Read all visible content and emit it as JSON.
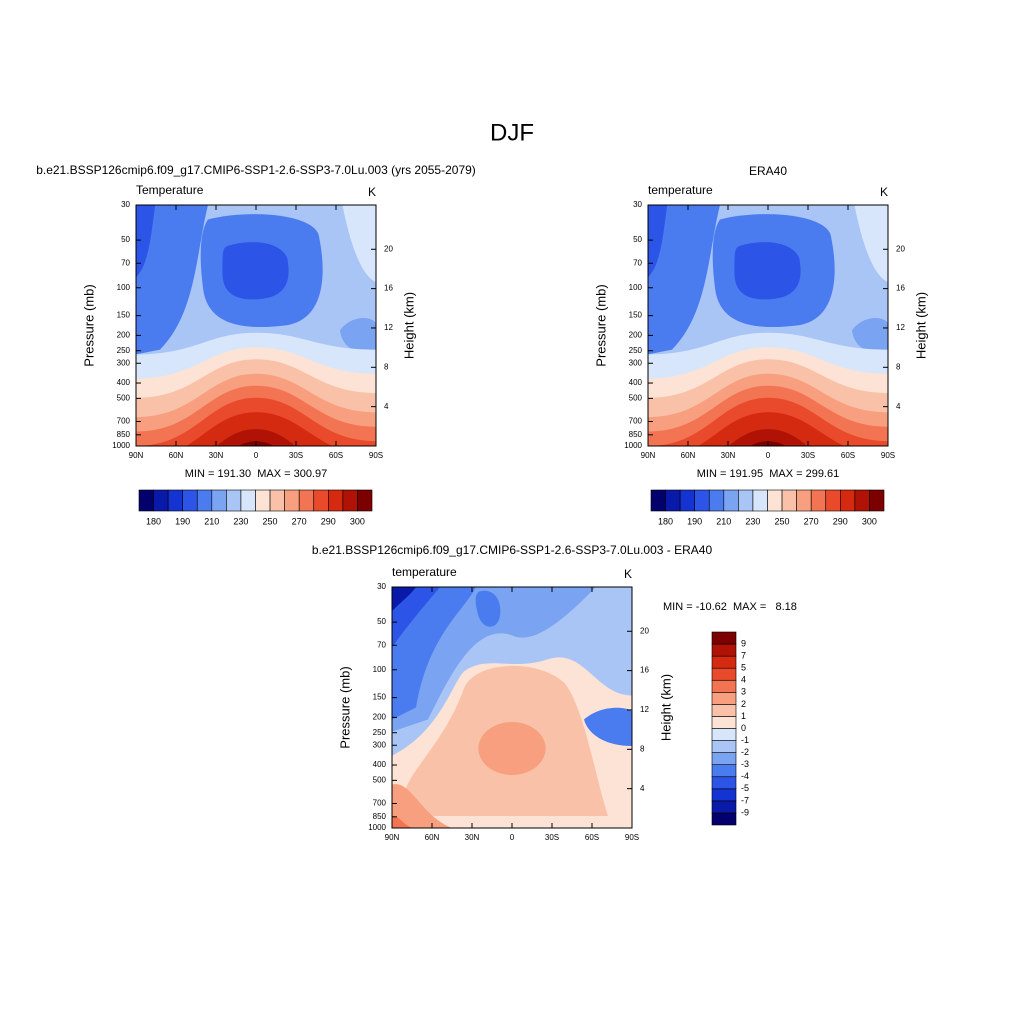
{
  "title": "DJF",
  "chart_data": [
    {
      "type": "contour",
      "title": "b.e21.BSSP126cmip6.f09_g17.CMIP6-SSP1-2.6-SSP3-7.0Lu.003 (yrs 2055-2079)",
      "left_title": "Temperature",
      "right_title": "K",
      "y_label": "Pressure (mb)",
      "y2_label": "Height (km)",
      "stats": "MIN = 191.30  MAX = 300.97",
      "xlim": [
        90,
        -90
      ],
      "xticks": [
        {
          "value": 90,
          "label": "90N"
        },
        {
          "value": 60,
          "label": "60N"
        },
        {
          "value": 30,
          "label": "30N"
        },
        0,
        {
          "value": -30,
          "label": "30S"
        },
        {
          "value": -60,
          "label": "60S"
        },
        {
          "value": -90,
          "label": "90S"
        }
      ],
      "ylim": [
        1000,
        30
      ],
      "ylog": true,
      "yticks": [
        30,
        50,
        70,
        100,
        150,
        200,
        250,
        300,
        400,
        500,
        700,
        850,
        1000
      ],
      "y2lim": [
        0,
        24.5
      ],
      "y2ticks": [
        4,
        8,
        12,
        16,
        20
      ],
      "colorbar": {
        "orientation": "horizontal",
        "colors": [
          "#03006d",
          "#0a1aa8",
          "#1533d1",
          "#2c55e8",
          "#4a7cf0",
          "#7aa3f2",
          "#a9c5f5",
          "#d7e6fb",
          "#fde3d5",
          "#f9c2a8",
          "#f79f7e",
          "#f27453",
          "#e84a2b",
          "#d42a10",
          "#b01305",
          "#7d0000"
        ],
        "ticks": [
          180,
          190,
          210,
          230,
          250,
          270,
          290,
          300
        ]
      }
    },
    {
      "type": "contour",
      "title": "ERA40",
      "left_title": "temperature",
      "right_title": "K",
      "y_label": "Pressure (mb)",
      "y2_label": "Height (km)",
      "stats": "MIN = 191.95  MAX = 299.61",
      "xlim": [
        90,
        -90
      ],
      "xticks": [
        {
          "value": 90,
          "label": "90N"
        },
        {
          "value": 60,
          "label": "60N"
        },
        {
          "value": 30,
          "label": "30N"
        },
        0,
        {
          "value": -30,
          "label": "30S"
        },
        {
          "value": -60,
          "label": "60S"
        },
        {
          "value": -90,
          "label": "90S"
        }
      ],
      "ylim": [
        1000,
        30
      ],
      "ylog": true,
      "yticks": [
        30,
        50,
        70,
        100,
        150,
        200,
        250,
        300,
        400,
        500,
        700,
        850,
        1000
      ],
      "y2lim": [
        0,
        24.5
      ],
      "y2ticks": [
        4,
        8,
        12,
        16,
        20
      ],
      "colorbar": {
        "orientation": "horizontal",
        "colors": [
          "#03006d",
          "#0a1aa8",
          "#1533d1",
          "#2c55e8",
          "#4a7cf0",
          "#7aa3f2",
          "#a9c5f5",
          "#d7e6fb",
          "#fde3d5",
          "#f9c2a8",
          "#f79f7e",
          "#f27453",
          "#e84a2b",
          "#d42a10",
          "#b01305",
          "#7d0000"
        ],
        "ticks": [
          180,
          190,
          210,
          230,
          250,
          270,
          290,
          300
        ]
      }
    },
    {
      "type": "contour",
      "title": "b.e21.BSSP126cmip6.f09_g17.CMIP6-SSP1-2.6-SSP3-7.0Lu.003 - ERA40",
      "left_title": "temperature",
      "right_title": "K",
      "y_label": "Pressure (mb)",
      "y2_label": "Height (km)",
      "stats": "MIN = -10.62  MAX =   8.18",
      "xlim": [
        90,
        -90
      ],
      "xticks": [
        {
          "value": 90,
          "label": "90N"
        },
        {
          "value": 60,
          "label": "60N"
        },
        {
          "value": 30,
          "label": "30N"
        },
        0,
        {
          "value": -30,
          "label": "30S"
        },
        {
          "value": -60,
          "label": "60S"
        },
        {
          "value": -90,
          "label": "90S"
        }
      ],
      "ylim": [
        1000,
        30
      ],
      "ylog": true,
      "yticks": [
        30,
        50,
        70,
        100,
        150,
        200,
        250,
        300,
        400,
        500,
        700,
        850,
        1000
      ],
      "y2lim": [
        0,
        24.5
      ],
      "y2ticks": [
        4,
        8,
        12,
        16,
        20
      ],
      "colorbar": {
        "orientation": "vertical",
        "colors": [
          "#03006d",
          "#0a1aa8",
          "#1533d1",
          "#2c55e8",
          "#4a7cf0",
          "#7aa3f2",
          "#a9c5f5",
          "#d7e6fb",
          "#fde3d5",
          "#f9c2a8",
          "#f79f7e",
          "#f27453",
          "#e84a2b",
          "#d42a10",
          "#b01305",
          "#7d0000"
        ],
        "ticks": [
          -9,
          -7,
          -5,
          -4,
          -3,
          -2,
          -1,
          0,
          1,
          2,
          3,
          4,
          5,
          7,
          9
        ]
      }
    }
  ]
}
